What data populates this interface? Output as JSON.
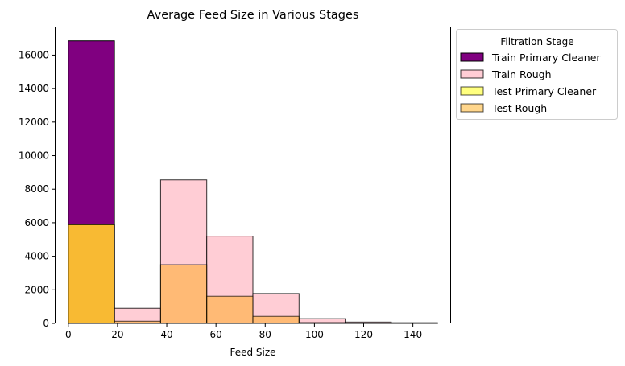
{
  "chart_data": {
    "type": "histogram",
    "title": "Average Feed Size in Various Stages",
    "xlabel": "Feed Size",
    "ylabel": "",
    "xlim": [
      -5.5,
      155.5
    ],
    "ylim": [
      0,
      17700
    ],
    "xticks": [
      0,
      20,
      40,
      60,
      80,
      100,
      120,
      140
    ],
    "yticks": [
      0,
      2000,
      4000,
      6000,
      8000,
      10000,
      12000,
      14000,
      16000
    ],
    "bin_edges": [
      0,
      18.75,
      37.5,
      56.25,
      75,
      93.75,
      112.5,
      131.25,
      150
    ],
    "legend": {
      "title": "Filtration Stage",
      "location": "upper left, outside right"
    },
    "series": [
      {
        "name": "Train Primary Cleaner",
        "color": "#800080",
        "alpha": 1.0,
        "values": [
          16850,
          20,
          10,
          5,
          0,
          0,
          0,
          0
        ]
      },
      {
        "name": "Train Rough",
        "color": "#ffc0cb",
        "alpha": 0.8,
        "values": [
          5900,
          900,
          8550,
          5200,
          1780,
          280,
          80,
          40
        ]
      },
      {
        "name": "Test Primary Cleaner",
        "color": "#ffff00",
        "alpha": 0.5,
        "values": [
          5900,
          15,
          5,
          0,
          0,
          0,
          0,
          0
        ]
      },
      {
        "name": "Test Rough",
        "color": "#ffa500",
        "alpha": 0.45,
        "values": [
          5880,
          130,
          3500,
          1620,
          420,
          50,
          20,
          10
        ]
      }
    ]
  }
}
